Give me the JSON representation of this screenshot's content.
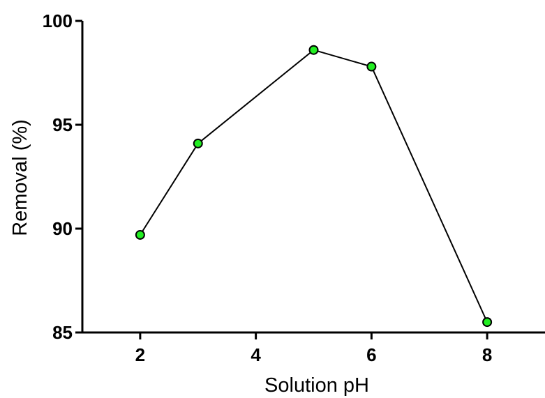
{
  "chart_data": {
    "type": "line",
    "title": "",
    "xlabel": "Solution pH",
    "ylabel": "Removal (%)",
    "xlim": [
      1,
      9
    ],
    "ylim": [
      85,
      100
    ],
    "xticks": [
      2,
      4,
      6,
      8
    ],
    "yticks": [
      85,
      90,
      95,
      100
    ],
    "grid": false,
    "legend": "none",
    "series": [
      {
        "x": [
          2,
          3,
          5,
          6,
          8
        ],
        "y": [
          89.7,
          94.1,
          98.6,
          97.8,
          85.5
        ],
        "marker_color": "#22ee22",
        "line_color": "#000000"
      }
    ]
  }
}
